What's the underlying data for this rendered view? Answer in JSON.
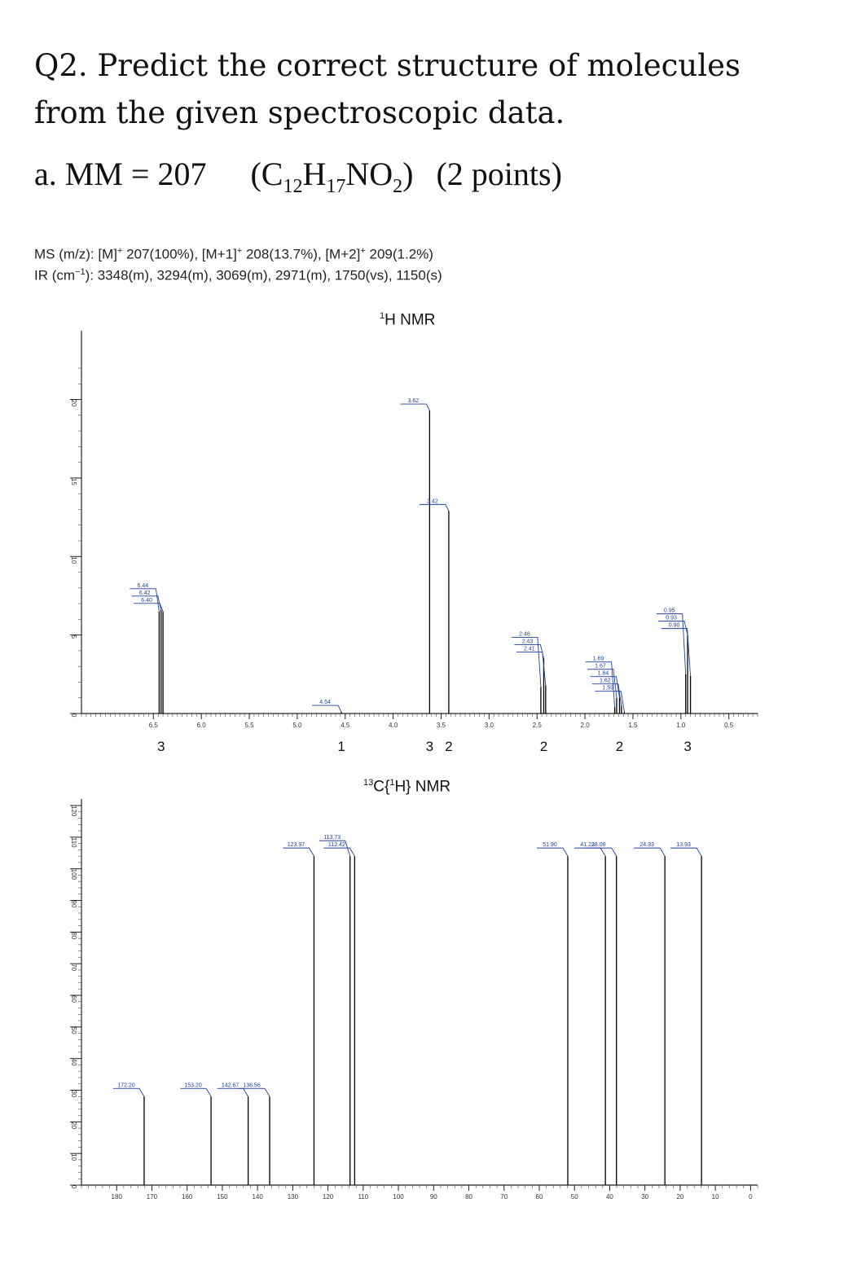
{
  "question": {
    "title": "Q2. Predict the correct structure of molecules from the given spectroscopic data.",
    "part_label": "a. MM = 207",
    "formula": {
      "open": "(C",
      "c": "12",
      "h_sym": "H",
      "h": "17",
      "no": "NO",
      "o": "2",
      "close": ")"
    },
    "points": "(2 points)"
  },
  "ms": {
    "label": "MS (m/z):",
    "m_label": "[M]",
    "m_value": "207(100%),",
    "m1_label": "[M+1]",
    "m1_value": "208(13.7%),",
    "m2_label": "[M+2]",
    "m2_value": "209(1.2%)",
    "plus": "+"
  },
  "ir": {
    "prefix": "IR (cm",
    "exp": "−1",
    "suffix": "): 3348(m), 3294(m), 3069(m), 2971(m), 1750(vs), 1150(s)"
  },
  "h_title": {
    "sup": "1",
    "text": "H NMR"
  },
  "c_title": {
    "sup13": "13",
    "c": "C{",
    "sup1": "1",
    "rest": "H} NMR"
  },
  "chart_data": [
    {
      "type": "bar",
      "title": "¹H NMR",
      "xlim": [
        7.25,
        0.2
      ],
      "ylim": [
        0,
        22
      ],
      "x_ticks": [
        "6.5",
        "6.0",
        "5.5",
        "5.0",
        "4.5",
        "4.0",
        "3.5",
        "3.0",
        "2.5",
        "2.0",
        "1.5",
        "1.0",
        "0.5"
      ],
      "y_ticks": [
        "0",
        "5",
        "10",
        "15",
        "20"
      ],
      "peaks": [
        {
          "x": 6.44,
          "y": 6.5,
          "label": "6.44"
        },
        {
          "x": 6.42,
          "y": 6.6,
          "label": "6.42"
        },
        {
          "x": 6.4,
          "y": 6.5,
          "label": "6.40"
        },
        {
          "x": 4.54,
          "y": 0.1,
          "label": "4.54"
        },
        {
          "x": 3.62,
          "y": 19.3,
          "label": "3.62"
        },
        {
          "x": 3.42,
          "y": 12.9,
          "label": "3.42"
        },
        {
          "x": 2.46,
          "y": 1.7,
          "label": "2.46"
        },
        {
          "x": 2.43,
          "y": 3.5,
          "label": "2.43"
        },
        {
          "x": 2.41,
          "y": 1.8,
          "label": "2.41"
        },
        {
          "x": 1.69,
          "y": 0.4,
          "label": "1.69"
        },
        {
          "x": 1.67,
          "y": 1.0,
          "label": "1.67"
        },
        {
          "x": 1.64,
          "y": 1.0,
          "label": "1.64"
        },
        {
          "x": 1.62,
          "y": 0.5,
          "label": "1.62"
        },
        {
          "x": 1.59,
          "y": 0.1,
          "label": "1.59"
        },
        {
          "x": 0.95,
          "y": 2.5,
          "label": "0.95"
        },
        {
          "x": 0.93,
          "y": 5.0,
          "label": "0.93"
        },
        {
          "x": 0.9,
          "y": 2.4,
          "label": "0.90"
        }
      ],
      "integrations": [
        {
          "x": 6.42,
          "value": "3"
        },
        {
          "x": 4.54,
          "value": "1"
        },
        {
          "x": 3.62,
          "value": "3"
        },
        {
          "x": 3.42,
          "value": "2"
        },
        {
          "x": 2.43,
          "value": "2"
        },
        {
          "x": 1.64,
          "value": "2"
        },
        {
          "x": 0.93,
          "value": "3"
        }
      ]
    },
    {
      "type": "bar",
      "title": "¹³C{¹H} NMR",
      "xlim": [
        190,
        -2
      ],
      "ylim": [
        0,
        120
      ],
      "x_ticks": [
        "180",
        "170",
        "160",
        "150",
        "140",
        "130",
        "120",
        "110",
        "100",
        "90",
        "80",
        "70",
        "60",
        "50",
        "40",
        "30",
        "20",
        "10",
        "0"
      ],
      "y_ticks": [
        "0",
        "10",
        "20",
        "30",
        "40",
        "50",
        "60",
        "70",
        "80",
        "90",
        "100",
        "110",
        "120"
      ],
      "peaks": [
        {
          "x": 172.2,
          "y": 28,
          "label": "172.20"
        },
        {
          "x": 153.2,
          "y": 28,
          "label": "153.20"
        },
        {
          "x": 142.67,
          "y": 28,
          "label": "142.67"
        },
        {
          "x": 136.56,
          "y": 28,
          "label": "136.56"
        },
        {
          "x": 123.97,
          "y": 104,
          "label": "123.97"
        },
        {
          "x": 113.73,
          "y": 104,
          "label": "113.73"
        },
        {
          "x": 112.42,
          "y": 104,
          "label": "112.42"
        },
        {
          "x": 51.9,
          "y": 104,
          "label": "51.90"
        },
        {
          "x": 41.22,
          "y": 104,
          "label": "41.22"
        },
        {
          "x": 38.08,
          "y": 104,
          "label": "38.08"
        },
        {
          "x": 24.33,
          "y": 104,
          "label": "24.33"
        },
        {
          "x": 13.93,
          "y": 104,
          "label": "13.93"
        }
      ]
    }
  ]
}
